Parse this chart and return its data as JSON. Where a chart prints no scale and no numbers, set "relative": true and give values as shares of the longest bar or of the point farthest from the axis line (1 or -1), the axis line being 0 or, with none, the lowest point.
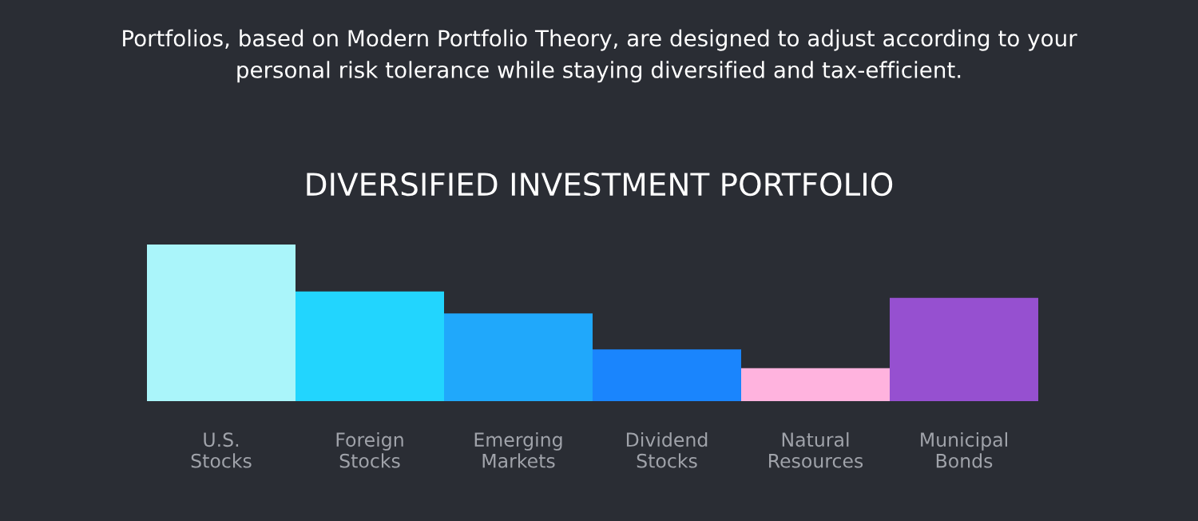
{
  "chart_data": {
    "type": "bar",
    "relative": true,
    "title": "DIVERSIFIED INVESTMENT PORTFOLIO",
    "subtitle": "Portfolios, based on Modern Portfolio Theory, are designed to adjust according to your\npersonal risk tolerance while staying diversified and tax-efficient.",
    "categories": [
      "U.S.\nStocks",
      "Foreign\nStocks",
      "Emerging\nMarkets",
      "Dividend\nStocks",
      "Natural\nResources",
      "Municipal\nBonds"
    ],
    "values": [
      1,
      0.7,
      0.56,
      0.33,
      0.21,
      0.66
    ],
    "colors": [
      "#aaf5fa",
      "#22d5fe",
      "#20a8fb",
      "#1a85fd",
      "#ffb3de",
      "#9650d0"
    ],
    "grid": false,
    "legend": false
  }
}
